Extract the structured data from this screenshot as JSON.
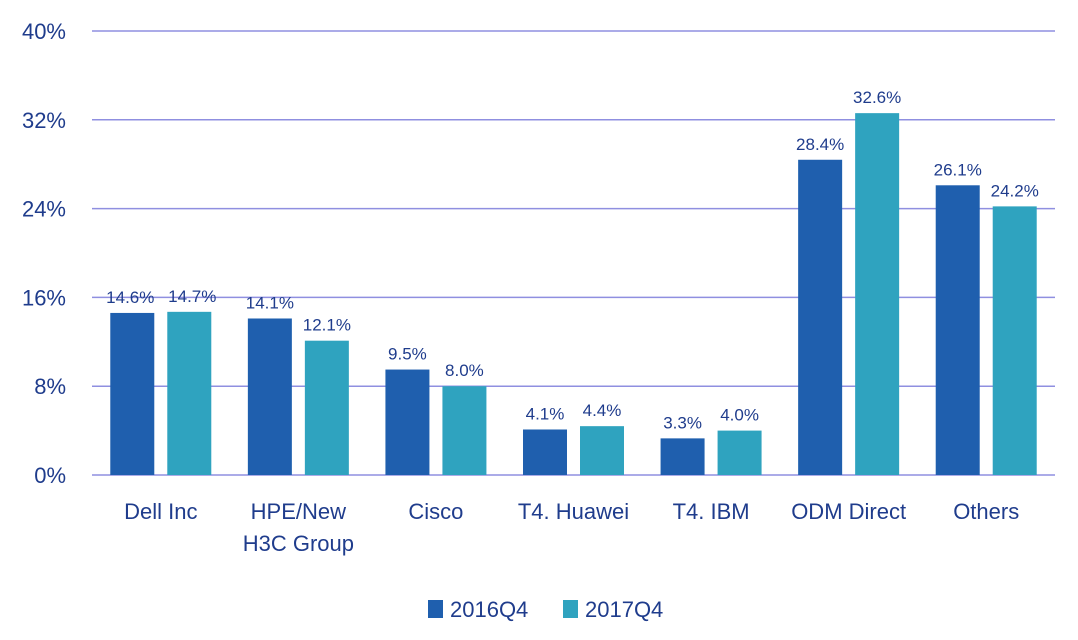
{
  "chart_data": {
    "type": "bar",
    "title": "",
    "xlabel": "",
    "ylabel": "",
    "categories": [
      [
        "Dell Inc"
      ],
      [
        "HPE/New",
        "H3C Group"
      ],
      [
        "Cisco"
      ],
      [
        "T4. Huawei"
      ],
      [
        "T4. IBM"
      ],
      [
        "ODM Direct"
      ],
      [
        "Others"
      ]
    ],
    "series": [
      {
        "name": "2016Q4",
        "color": "#1f5fae",
        "values": [
          14.6,
          14.1,
          9.5,
          4.1,
          3.3,
          28.4,
          26.1
        ],
        "labels": [
          "14.6%",
          "14.1%",
          "9.5%",
          "4.1%",
          "3.3%",
          "28.4%",
          "26.1%"
        ]
      },
      {
        "name": "2017Q4",
        "color": "#2fa3bf",
        "values": [
          14.7,
          12.1,
          8.0,
          4.4,
          4.0,
          32.6,
          24.2
        ],
        "labels": [
          "14.7%",
          "12.1%",
          "8.0%",
          "4.4%",
          "4.0%",
          "32.6%",
          "24.2%"
        ]
      }
    ],
    "ylim": [
      0,
      40
    ],
    "yticks": [
      0,
      8,
      16,
      24,
      32,
      40
    ],
    "ytick_labels": [
      "0%",
      "8%",
      "16%",
      "24%",
      "32%",
      "40%"
    ],
    "grid": true,
    "gridline_color": "#8f8fe0",
    "legend_position": "bottom-center"
  }
}
